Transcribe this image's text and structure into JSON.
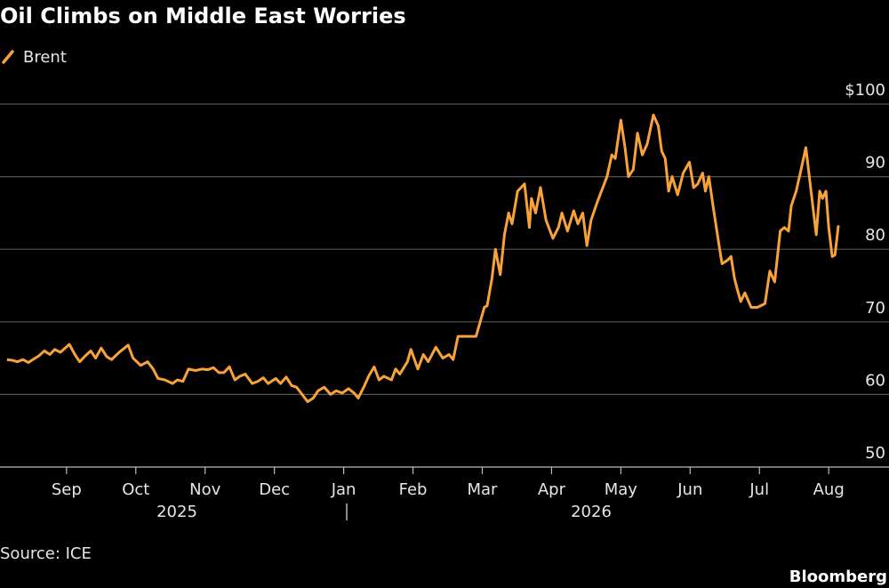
{
  "chart_data": {
    "type": "line",
    "title": "Oil Climbs on Middle East Worries",
    "source": "Source: ICE",
    "brand": "Bloomberg",
    "x_group_labels": [
      "2025",
      "2026"
    ],
    "xlim": [
      8.04,
      20.87
    ],
    "xticks": [
      {
        "value": 9,
        "label": "Sep"
      },
      {
        "value": 10,
        "label": "Oct"
      },
      {
        "value": 11,
        "label": "Nov"
      },
      {
        "value": 12,
        "label": "Dec"
      },
      {
        "value": 13,
        "label": "Jan"
      },
      {
        "value": 14,
        "label": "Feb"
      },
      {
        "value": 15,
        "label": "Mar"
      },
      {
        "value": 16,
        "label": "Apr"
      },
      {
        "value": 17,
        "label": "May"
      },
      {
        "value": 18,
        "label": "Jun"
      },
      {
        "value": 19,
        "label": "Jul"
      },
      {
        "value": 20,
        "label": "Aug"
      }
    ],
    "ylim": [
      50,
      100
    ],
    "yticks": [
      50,
      60,
      70,
      80,
      90,
      {
        "value": 100,
        "label": "$100"
      }
    ],
    "grid": true,
    "legend": "top-left",
    "x": [
      8.14,
      8.22,
      8.29,
      8.37,
      8.45,
      8.53,
      8.6,
      8.68,
      8.76,
      8.83,
      8.91,
      9.04,
      9.12,
      9.19,
      9.27,
      9.35,
      9.42,
      9.5,
      9.58,
      9.65,
      9.76,
      9.89,
      9.96,
      10.07,
      10.17,
      10.25,
      10.32,
      10.42,
      10.53,
      10.6,
      10.68,
      10.76,
      10.86,
      10.96,
      11.04,
      11.12,
      11.2,
      11.27,
      11.35,
      11.43,
      11.5,
      11.58,
      11.68,
      11.76,
      11.84,
      11.91,
      12.02,
      12.09,
      12.17,
      12.25,
      12.32,
      12.4,
      12.48,
      12.56,
      12.63,
      12.72,
      12.81,
      12.89,
      12.98,
      13.07,
      13.15,
      13.21,
      13.29,
      13.36,
      13.44,
      13.51,
      13.58,
      13.69,
      13.75,
      13.81,
      13.92,
      13.97,
      14.07,
      14.15,
      14.22,
      14.33,
      14.43,
      14.52,
      14.58,
      14.65,
      14.78,
      14.91,
      14.97,
      15.03,
      15.07,
      15.14,
      15.19,
      15.26,
      15.32,
      15.38,
      15.43,
      15.51,
      15.61,
      15.68,
      15.71,
      15.77,
      15.84,
      15.92,
      16.02,
      16.1,
      16.15,
      16.23,
      16.32,
      16.38,
      16.45,
      16.51,
      16.57,
      16.66,
      16.74,
      16.8,
      16.87,
      16.92,
      17.0,
      17.06,
      17.11,
      17.18,
      17.24,
      17.31,
      17.38,
      17.47,
      17.54,
      17.59,
      17.64,
      17.69,
      17.74,
      17.82,
      17.9,
      17.99,
      18.05,
      18.11,
      18.18,
      18.22,
      18.27,
      18.33,
      18.41,
      18.46,
      18.54,
      18.59,
      18.64,
      18.68,
      18.73,
      18.79,
      18.88,
      18.97,
      19.08,
      19.15,
      19.22,
      19.3,
      19.36,
      19.42,
      19.46,
      19.53,
      19.59,
      19.67,
      19.72,
      19.77,
      19.82,
      19.87,
      19.91,
      19.96,
      20.0,
      20.05,
      20.09,
      20.14
    ],
    "series": [
      {
        "name": "Brent",
        "color": "#f8a23a",
        "values": [
          64.8,
          64.7,
          64.5,
          64.8,
          64.4,
          64.9,
          65.3,
          66.0,
          65.5,
          66.2,
          65.8,
          66.9,
          65.5,
          64.5,
          65.3,
          66.0,
          65.0,
          66.4,
          65.2,
          64.8,
          65.8,
          66.8,
          65.0,
          64.0,
          64.5,
          63.5,
          62.2,
          62.0,
          61.5,
          62.0,
          61.8,
          63.5,
          63.3,
          63.5,
          63.4,
          63.7,
          63.0,
          63.0,
          63.8,
          62.0,
          62.5,
          62.8,
          61.5,
          61.8,
          62.3,
          61.5,
          62.2,
          61.5,
          62.4,
          61.2,
          61.0,
          60.0,
          59.0,
          59.5,
          60.5,
          61.0,
          60.0,
          60.5,
          60.2,
          60.8,
          60.2,
          59.5,
          61.0,
          62.5,
          63.8,
          62.0,
          62.5,
          62.0,
          63.5,
          62.8,
          64.5,
          66.2,
          63.5,
          65.5,
          64.5,
          66.5,
          65.0,
          65.5,
          64.8,
          68.0,
          68.0,
          68.0,
          70.0,
          72.0,
          72.2,
          76.0,
          80.0,
          76.5,
          82.0,
          85.0,
          83.5,
          88.0,
          89.0,
          83.0,
          87.0,
          85.0,
          88.5,
          84.0,
          81.5,
          83.0,
          85.0,
          82.5,
          85.3,
          83.5,
          85.0,
          80.5,
          84.0,
          86.5,
          88.5,
          90.0,
          93.0,
          92.5,
          97.8,
          94.0,
          90.0,
          91.0,
          96.0,
          93.0,
          94.5,
          98.5,
          97.0,
          93.5,
          92.5,
          88.0,
          90.0,
          87.5,
          90.5,
          92.0,
          88.5,
          89.0,
          90.5,
          88.0,
          90.0,
          86.0,
          81.0,
          78.0,
          78.5,
          79.0,
          76.0,
          74.5,
          72.8,
          74.0,
          72.0,
          72.0,
          72.5,
          77.0,
          75.5,
          82.5,
          83.0,
          82.5,
          86.0,
          88.0,
          90.5,
          94.0,
          90.0,
          86.0,
          82.0,
          88.0,
          87.0,
          88.0,
          83.0,
          79.0,
          79.2,
          83.3
        ]
      }
    ]
  }
}
